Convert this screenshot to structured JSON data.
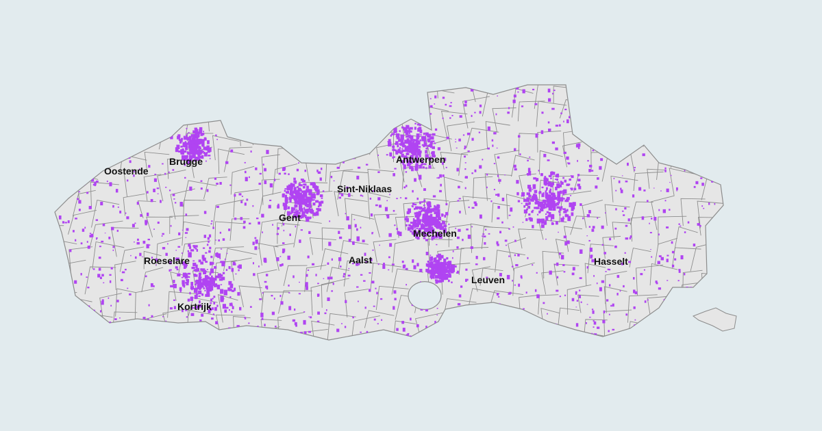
{
  "colors": {
    "background": "#e2ebee",
    "land": "#e6e6e6",
    "border": "#8c8c8c",
    "highlight": "#b044f2"
  },
  "cities": [
    {
      "name": "Oostende",
      "lon": 2.92,
      "lat": 51.23
    },
    {
      "name": "Brugge",
      "lon": 3.22,
      "lat": 51.21
    },
    {
      "name": "Gent",
      "lon": 3.72,
      "lat": 51.05
    },
    {
      "name": "Sint-Niklaas",
      "lon": 4.14,
      "lat": 51.17
    },
    {
      "name": "Antwerpen",
      "lon": 4.4,
      "lat": 51.22
    },
    {
      "name": "Mechelen",
      "lon": 4.48,
      "lat": 51.03
    },
    {
      "name": "Roeselare",
      "lon": 3.12,
      "lat": 50.95
    },
    {
      "name": "Kortrijk",
      "lon": 3.26,
      "lat": 50.83
    },
    {
      "name": "Aalst",
      "lon": 4.04,
      "lat": 50.94
    },
    {
      "name": "Leuven",
      "lon": 4.7,
      "lat": 50.88
    },
    {
      "name": "Hasselt",
      "lon": 5.34,
      "lat": 50.93
    }
  ]
}
